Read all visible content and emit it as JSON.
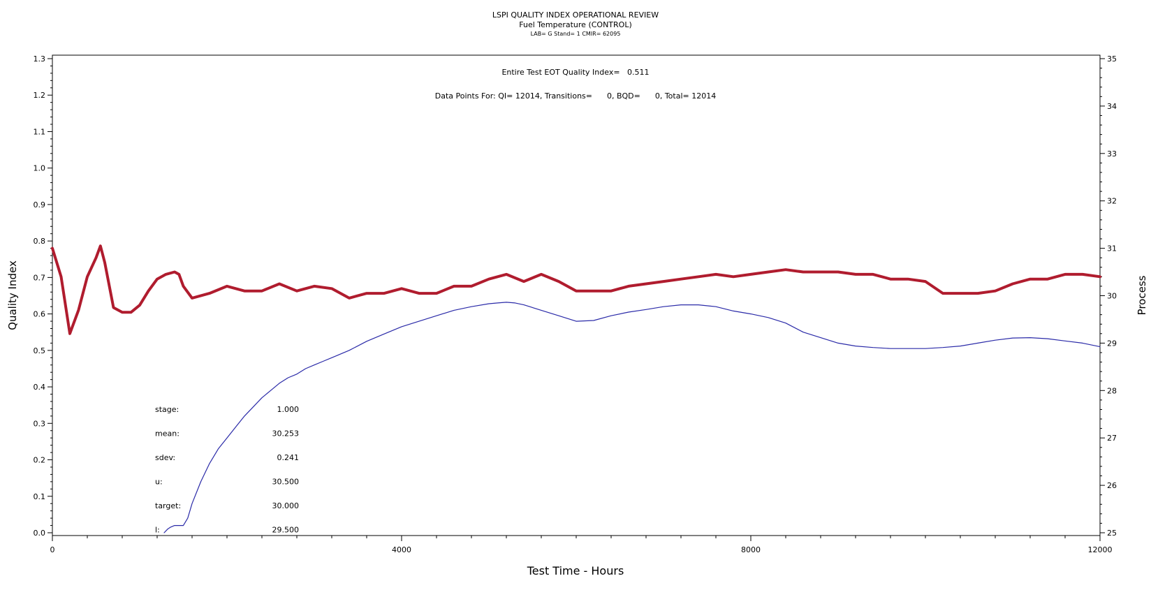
{
  "chart_data": {
    "type": "line",
    "title": "LSPI QUALITY INDEX OPERATIONAL REVIEW",
    "subtitle": "Fuel Temperature (CONTROL)",
    "subsubtitle": "LAB= G Stand= 1 CMIR= 62095",
    "annotation_qi": "Entire Test EOT Quality Index=   0.511",
    "annotation_points": "Data Points For: QI= 12014, Transitions=      0, BQD=      0, Total= 12014",
    "xlabel": "Test Time - Hours",
    "ylabel_left": "Quality Index",
    "ylabel_right": "Process",
    "xlim": [
      0,
      12000
    ],
    "ylim_left": [
      0,
      1.3
    ],
    "ylim_right": [
      25,
      35
    ],
    "x_ticks": [
      "0",
      "4000",
      "8000",
      "12000"
    ],
    "y_left_ticks": [
      "0.0",
      "0.1",
      "0.2",
      "0.3",
      "0.4",
      "0.5",
      "0.6",
      "0.7",
      "0.8",
      "0.9",
      "1.0",
      "1.1",
      "1.2",
      "1.3"
    ],
    "y_right_ticks": [
      "25",
      "26",
      "27",
      "28",
      "29",
      "30",
      "31",
      "32",
      "33",
      "34",
      "35"
    ],
    "grid": false,
    "stats": [
      {
        "label": "stage:",
        "value": "1.000"
      },
      {
        "label": "mean:",
        "value": "30.253"
      },
      {
        "label": "sdev:",
        "value": "0.241"
      },
      {
        "label": "u:",
        "value": "30.500"
      },
      {
        "label": "target:",
        "value": "30.000"
      },
      {
        "label": "l:",
        "value": "29.500"
      }
    ],
    "series": [
      {
        "axis": "right",
        "color": "#b01c2e",
        "x": [
          0,
          100,
          200,
          300,
          400,
          500,
          550,
          600,
          700,
          800,
          900,
          1000,
          1100,
          1200,
          1300,
          1400,
          1450,
          1500,
          1600,
          1800,
          2000,
          2200,
          2400,
          2600,
          2800,
          3000,
          3200,
          3400,
          3600,
          3800,
          4000,
          4200,
          4400,
          4600,
          4800,
          5000,
          5200,
          5400,
          5600,
          5800,
          6000,
          6200,
          6400,
          6600,
          6800,
          7000,
          7200,
          7400,
          7600,
          7800,
          8000,
          8200,
          8400,
          8600,
          8800,
          9000,
          9200,
          9400,
          9600,
          9800,
          10000,
          10200,
          10400,
          10600,
          10800,
          11000,
          11200,
          11400,
          11600,
          11800,
          12000
        ],
        "values": [
          31.0,
          30.4,
          29.2,
          29.7,
          30.4,
          30.8,
          31.05,
          30.7,
          29.75,
          29.65,
          29.65,
          29.8,
          30.1,
          30.35,
          30.45,
          30.5,
          30.45,
          30.2,
          29.95,
          30.05,
          30.2,
          30.1,
          30.1,
          30.25,
          30.1,
          30.2,
          30.15,
          29.95,
          30.05,
          30.05,
          30.15,
          30.05,
          30.05,
          30.2,
          30.2,
          30.35,
          30.45,
          30.3,
          30.45,
          30.3,
          30.1,
          30.1,
          30.1,
          30.2,
          30.25,
          30.3,
          30.35,
          30.4,
          30.45,
          30.4,
          30.45,
          30.5,
          30.55,
          30.5,
          30.5,
          30.5,
          30.45,
          30.45,
          30.35,
          30.35,
          30.3,
          30.05,
          30.05,
          30.05,
          30.1,
          30.25,
          30.35,
          30.35,
          30.45,
          30.45,
          30.4
        ]
      },
      {
        "axis": "left",
        "color": "#2a2aa8",
        "x": [
          1280,
          1320,
          1350,
          1400,
          1450,
          1500,
          1550,
          1600,
          1700,
          1800,
          1900,
          2000,
          2100,
          2200,
          2300,
          2400,
          2500,
          2600,
          2700,
          2800,
          2900,
          3000,
          3100,
          3200,
          3300,
          3400,
          3600,
          3800,
          4000,
          4200,
          4400,
          4600,
          4800,
          5000,
          5100,
          5200,
          5300,
          5400,
          5600,
          5800,
          6000,
          6200,
          6400,
          6600,
          6800,
          7000,
          7200,
          7400,
          7600,
          7800,
          8000,
          8200,
          8400,
          8600,
          8800,
          9000,
          9200,
          9400,
          9600,
          9800,
          10000,
          10200,
          10400,
          10600,
          10800,
          11000,
          11200,
          11400,
          11600,
          11800,
          12000
        ],
        "values": [
          0.0,
          0.01,
          0.015,
          0.02,
          0.02,
          0.02,
          0.04,
          0.08,
          0.14,
          0.19,
          0.23,
          0.26,
          0.29,
          0.32,
          0.345,
          0.37,
          0.39,
          0.41,
          0.425,
          0.435,
          0.45,
          0.46,
          0.47,
          0.48,
          0.49,
          0.5,
          0.525,
          0.545,
          0.565,
          0.58,
          0.595,
          0.61,
          0.62,
          0.628,
          0.63,
          0.632,
          0.63,
          0.625,
          0.61,
          0.595,
          0.58,
          0.582,
          0.595,
          0.605,
          0.612,
          0.62,
          0.625,
          0.625,
          0.62,
          0.608,
          0.6,
          0.59,
          0.575,
          0.55,
          0.535,
          0.52,
          0.512,
          0.508,
          0.505,
          0.505,
          0.505,
          0.508,
          0.512,
          0.52,
          0.528,
          0.534,
          0.535,
          0.532,
          0.526,
          0.52,
          0.51
        ]
      }
    ]
  }
}
